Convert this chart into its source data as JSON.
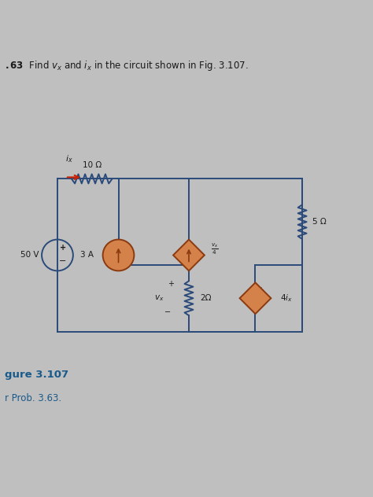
{
  "bg_color": "#bfbfbf",
  "wire_color": "#2a4a7a",
  "source_fill": "#d4824a",
  "source_edge": "#8b3a10",
  "text_color": "#1a1a1a",
  "red_arrow_color": "#cc2200",
  "caption_color": "#1a5a8a",
  "title_line": ".63  Find $v_x$ and $i_x$ in the circuit shown in Fig. 3.107.",
  "caption1": "gure 3.107",
  "caption2": "r Prob. 3.63."
}
